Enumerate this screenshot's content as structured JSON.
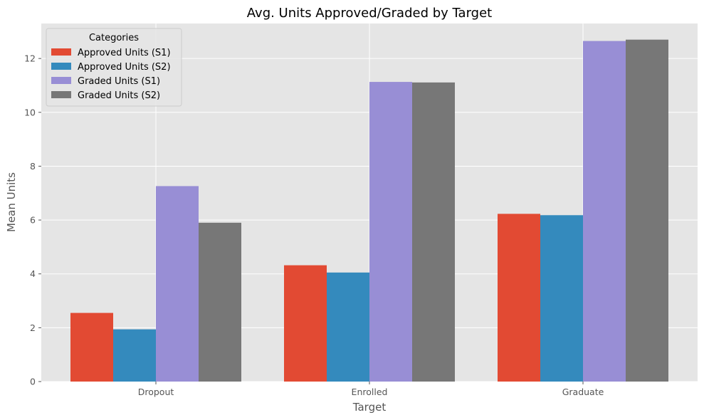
{
  "chart_data": {
    "type": "bar",
    "title": "Avg. Units Approved/Graded by Target",
    "xlabel": "Target",
    "ylabel": "Mean Units",
    "categories": [
      "Dropout",
      "Enrolled",
      "Graduate"
    ],
    "series": [
      {
        "name": "Approved Units (S1)",
        "values": [
          2.55,
          4.32,
          6.23
        ],
        "color": "#E24A33"
      },
      {
        "name": "Approved Units (S2)",
        "values": [
          1.94,
          4.05,
          6.18
        ],
        "color": "#348ABD"
      },
      {
        "name": "Graded Units (S1)",
        "values": [
          7.26,
          11.13,
          12.65
        ],
        "color": "#988ED5"
      },
      {
        "name": "Graded Units (S2)",
        "values": [
          5.9,
          11.11,
          12.7
        ],
        "color": "#777777"
      }
    ],
    "ylim": [
      0,
      13.3
    ],
    "yticks": [
      0,
      2,
      4,
      6,
      8,
      10,
      12
    ],
    "grid": true,
    "legend": {
      "title": "Categories",
      "placement": "top-left"
    },
    "background_color": "#E5E5E5",
    "grid_color": "#FFFFFF"
  }
}
